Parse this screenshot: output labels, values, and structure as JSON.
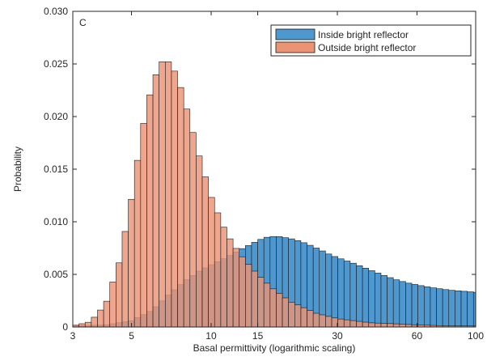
{
  "chart_data": {
    "type": "bar",
    "panel_label": "C",
    "xlabel": "Basal permittivity (logarithmic scaling)",
    "ylabel": "Probability",
    "x_scale": "log",
    "xlim": [
      3,
      100
    ],
    "ylim": [
      0,
      0.03
    ],
    "x_ticks": [
      3,
      5,
      10,
      15,
      30,
      60,
      100
    ],
    "x_tick_labels": [
      "3",
      "5",
      "10",
      "15",
      "30",
      "60",
      "100"
    ],
    "y_ticks": [
      0,
      0.005,
      0.01,
      0.015,
      0.02,
      0.025,
      0.03
    ],
    "y_tick_labels": [
      "0",
      "0.005",
      "0.010",
      "0.015",
      "0.020",
      "0.025",
      "0.030"
    ],
    "bin_width_log10": 0.0233,
    "grid": false,
    "legend_position": "top-right",
    "series": [
      {
        "name": "Inside bright reflector",
        "color": "#4f97cf",
        "x": [
          3,
          4,
          5,
          6,
          7,
          8,
          9,
          10,
          11,
          12,
          13,
          14,
          15,
          16,
          17,
          18,
          19,
          20,
          22,
          24,
          26,
          28,
          30,
          35,
          40,
          45,
          50,
          55,
          60,
          70,
          80,
          90,
          100
        ],
        "values": [
          0.0001,
          0.0002,
          0.0006,
          0.0016,
          0.0032,
          0.0044,
          0.0053,
          0.0059,
          0.0064,
          0.0069,
          0.0074,
          0.0078,
          0.0082,
          0.0085,
          0.0086,
          0.0086,
          0.0085,
          0.0084,
          0.0081,
          0.0077,
          0.0073,
          0.0069,
          0.0066,
          0.006,
          0.0054,
          0.0049,
          0.0045,
          0.0042,
          0.004,
          0.0037,
          0.0035,
          0.0034,
          0.0033
        ]
      },
      {
        "name": "Outside bright reflector",
        "color": "#ea9475",
        "x": [
          3,
          3.5,
          4,
          4.5,
          5,
          5.5,
          6,
          6.5,
          7,
          7.5,
          8,
          9,
          10,
          11,
          12,
          13,
          14,
          15,
          17,
          20,
          25,
          30,
          40,
          50,
          60,
          80,
          100
        ],
        "values": [
          0.0001,
          0.0005,
          0.0022,
          0.0062,
          0.0122,
          0.0188,
          0.0232,
          0.0252,
          0.0252,
          0.0236,
          0.0212,
          0.0163,
          0.0124,
          0.0098,
          0.008,
          0.0068,
          0.0058,
          0.005,
          0.0037,
          0.0024,
          0.0013,
          0.0008,
          0.0004,
          0.0003,
          0.0002,
          0.0001,
          0.0001
        ]
      }
    ]
  }
}
